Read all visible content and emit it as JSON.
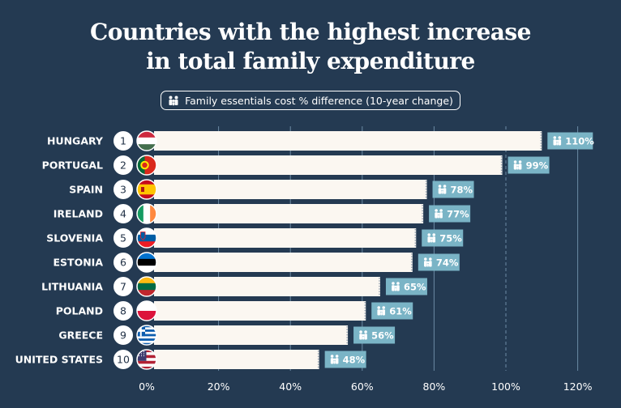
{
  "title_line1": "Countries with the highest increase",
  "title_line2": "in total family expenditure",
  "legend_label": "Family essentials cost % difference (10-year change)",
  "colors": {
    "background": "#243a52",
    "bar": "#fbf7f1",
    "label_box": "#7ab4c6",
    "gridline": "#6c8aa4",
    "text": "#ffffff"
  },
  "chart_data": {
    "type": "bar",
    "orientation": "horizontal",
    "title": "Countries with the highest increase in total family expenditure",
    "legend": "Family essentials cost % difference (10-year change)",
    "categories": [
      "HUNGARY",
      "PORTUGAL",
      "SPAIN",
      "IRELAND",
      "SLOVENIA",
      "ESTONIA",
      "LITHUANIA",
      "POLAND",
      "GREECE",
      "UNITED STATES"
    ],
    "ranks": [
      "1",
      "2",
      "3",
      "4",
      "5",
      "6",
      "7",
      "8",
      "9",
      "10"
    ],
    "values": [
      110,
      99,
      78,
      77,
      75,
      74,
      65,
      61,
      56,
      48
    ],
    "value_labels": [
      "110%",
      "99%",
      "78%",
      "77%",
      "75%",
      "74%",
      "65%",
      "61%",
      "56%",
      "48%"
    ],
    "flags": [
      "hungary-flag",
      "portugal-flag",
      "spain-flag",
      "ireland-flag",
      "slovenia-flag",
      "estonia-flag",
      "lithuania-flag",
      "poland-flag",
      "greece-flag",
      "united-states-flag"
    ],
    "xticks": [
      0,
      20,
      40,
      60,
      80,
      100,
      120
    ],
    "xtick_labels": [
      "0%",
      "20%",
      "40%",
      "60%",
      "80%",
      "100%",
      "120%"
    ],
    "xlim": [
      0,
      120
    ],
    "reference_line": 100,
    "grid": true
  }
}
